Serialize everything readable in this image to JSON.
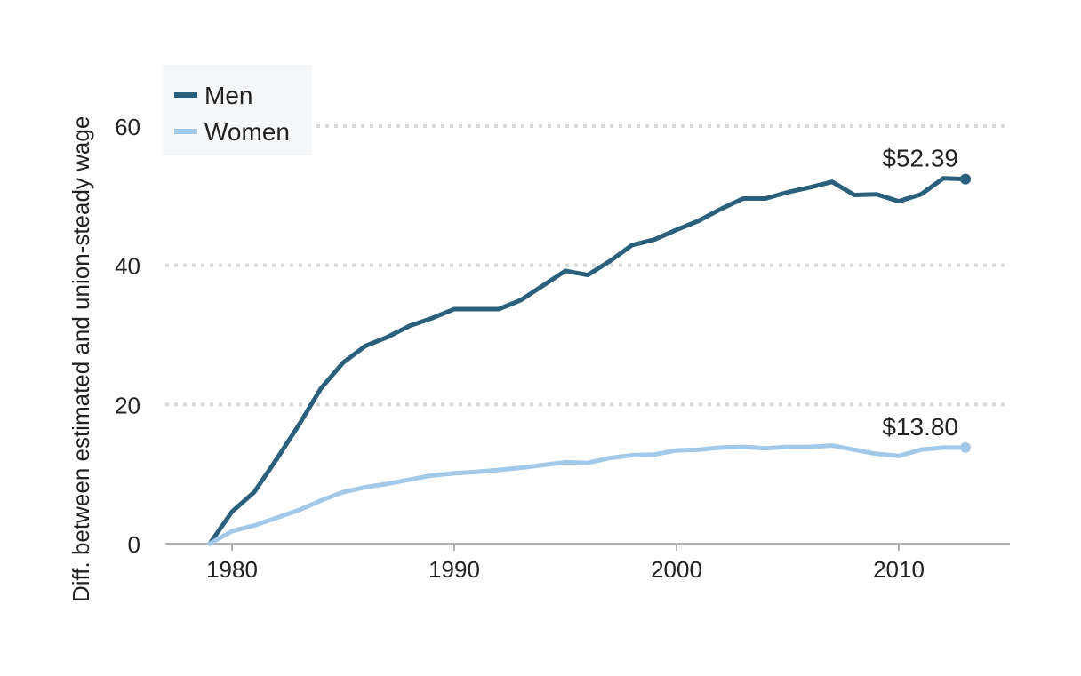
{
  "chart_data": {
    "type": "line",
    "title": "",
    "xlabel": "",
    "ylabel": "Diff. between estimated and union-steady wage",
    "xlim": [
      1977,
      2015
    ],
    "ylim": [
      0,
      60
    ],
    "x_ticks": [
      1980,
      1990,
      2000,
      2010
    ],
    "y_ticks": [
      0,
      20,
      40,
      60
    ],
    "grid": "horizontal dotted",
    "legend": "top-left",
    "x": [
      1979,
      1980,
      1981,
      1982,
      1983,
      1984,
      1985,
      1986,
      1987,
      1988,
      1989,
      1990,
      1991,
      1992,
      1993,
      1994,
      1995,
      1996,
      1997,
      1998,
      1999,
      2000,
      2001,
      2002,
      2003,
      2004,
      2005,
      2006,
      2007,
      2008,
      2009,
      2010,
      2011,
      2012,
      2013
    ],
    "series": [
      {
        "name": "Men",
        "color": "#2a607c",
        "values": [
          0,
          4.6,
          7.4,
          12.1,
          17.0,
          22.3,
          26.0,
          28.4,
          29.7,
          31.3,
          32.4,
          33.7,
          33.7,
          33.7,
          35.0,
          37.1,
          39.2,
          38.6,
          40.6,
          42.9,
          43.7,
          45.1,
          46.4,
          48.1,
          49.6,
          49.6,
          50.5,
          51.2,
          52.0,
          50.1,
          50.2,
          49.2,
          50.2,
          52.5,
          52.39
        ],
        "end_label": "$52.39"
      },
      {
        "name": "Women",
        "color": "#a3c9e8",
        "values": [
          0,
          1.8,
          2.6,
          3.7,
          4.8,
          6.2,
          7.4,
          8.1,
          8.6,
          9.2,
          9.8,
          10.1,
          10.3,
          10.6,
          10.9,
          11.3,
          11.7,
          11.6,
          12.3,
          12.7,
          12.8,
          13.4,
          13.5,
          13.8,
          13.9,
          13.7,
          13.9,
          13.9,
          14.1,
          13.5,
          12.9,
          12.6,
          13.5,
          13.8,
          13.8
        ],
        "end_label": "$13.80"
      }
    ]
  }
}
